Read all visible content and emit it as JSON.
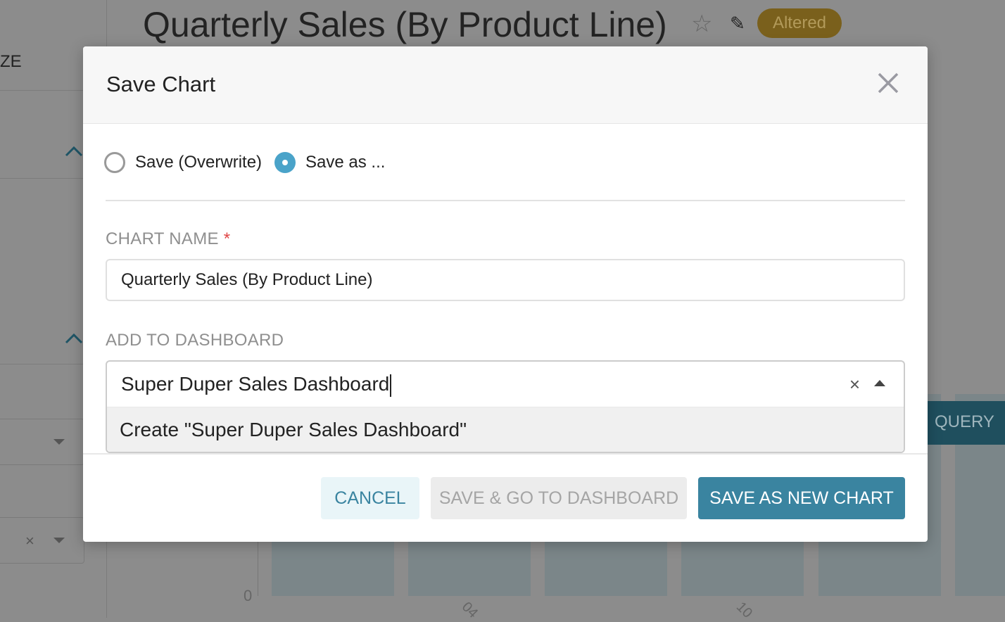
{
  "background": {
    "page_title": "Quarterly Sales (By Product Line)",
    "status_badge": "Altered",
    "sidebar_fragment": "ZE",
    "query_button": "QUERY",
    "y_tick": "0",
    "x_ticks": [
      "04",
      "10"
    ],
    "colors": {
      "badge": "#7a601c",
      "query": "#1f4f5e"
    }
  },
  "modal": {
    "title": "Save Chart",
    "save_mode": {
      "options": [
        {
          "label": "Save (Overwrite)",
          "selected": false
        },
        {
          "label": "Save as ...",
          "selected": true
        }
      ]
    },
    "chart_name": {
      "label": "CHART NAME",
      "required_mark": "*",
      "value": "Quarterly Sales (By Product Line)"
    },
    "dashboard": {
      "label": "ADD TO DASHBOARD",
      "value": "Super Duper Sales Dashboard",
      "clear_icon": "×",
      "option": "Create \"Super Duper Sales Dashboard\""
    },
    "buttons": {
      "cancel": "CANCEL",
      "save_go": "SAVE & GO TO DASHBOARD",
      "save_new": "SAVE AS NEW CHART"
    },
    "colors": {
      "primary": "#3a84a0",
      "radio": "#4aa3c9"
    }
  }
}
